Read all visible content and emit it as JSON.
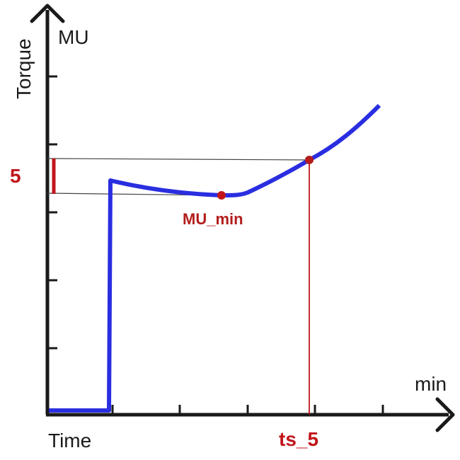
{
  "diagram": {
    "axes": {
      "y_label_rotated": "Torque",
      "y_unit": "MU",
      "x_label": "Time",
      "x_unit": "min"
    },
    "annotations": {
      "delta_label": "5",
      "min_point_label": "MU_min",
      "scorch_time_label": "ts_5"
    },
    "colors": {
      "axis": "#1a1a1a",
      "curve": "#2a2ee0",
      "accent_red": "#c0161b",
      "guide_line": "#444444"
    }
  }
}
